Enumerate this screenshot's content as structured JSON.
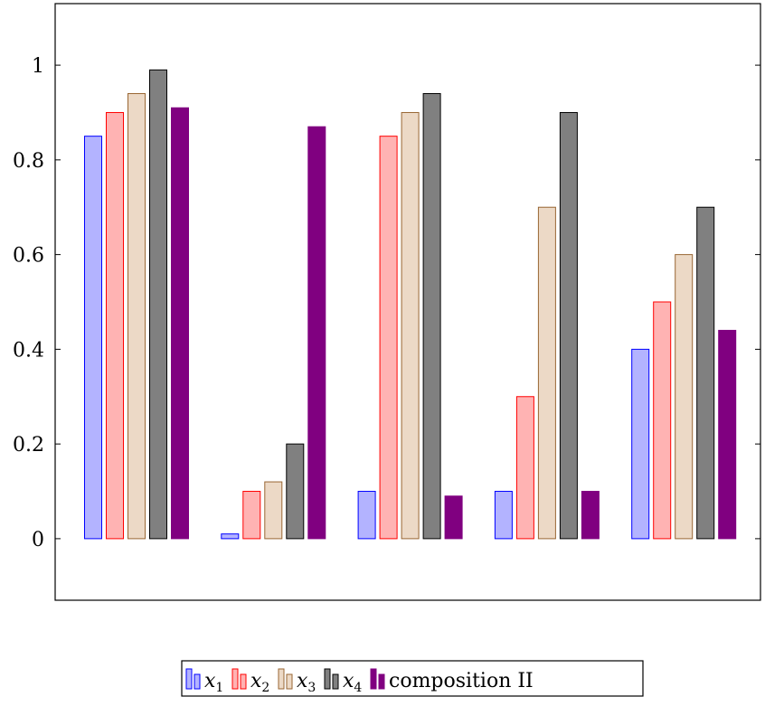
{
  "chart_data": {
    "type": "bar",
    "title": "",
    "xlabel": "",
    "ylabel": "",
    "categories": [
      "",
      "",
      "",
      "",
      ""
    ],
    "ylim": [
      -0.13,
      1.13
    ],
    "yticks": [
      0,
      0.2,
      0.4,
      0.6,
      0.8,
      1
    ],
    "ytick_labels": [
      "0",
      "0.2",
      "0.4",
      "0.6",
      "0.8",
      "1"
    ],
    "grid": false,
    "legend_position": "bottom-center",
    "series": [
      {
        "name": "x1",
        "label_base": "x",
        "label_sub": "1",
        "values": [
          0.85,
          0.01,
          0.1,
          0.1,
          0.4
        ],
        "fill": "#b3b3ff",
        "stroke": "#0000ff"
      },
      {
        "name": "x2",
        "label_base": "x",
        "label_sub": "2",
        "values": [
          0.9,
          0.1,
          0.85,
          0.3,
          0.5
        ],
        "fill": "#ffb3b3",
        "stroke": "#ff0000"
      },
      {
        "name": "x3",
        "label_base": "x",
        "label_sub": "3",
        "values": [
          0.94,
          0.12,
          0.9,
          0.7,
          0.6
        ],
        "fill": "#ecd9c6",
        "stroke": "#996633"
      },
      {
        "name": "x4",
        "label_base": "x",
        "label_sub": "4",
        "values": [
          0.99,
          0.2,
          0.94,
          0.9,
          0.7
        ],
        "fill": "#808080",
        "stroke": "#000000"
      },
      {
        "name": "composition II",
        "label_base": "composition II",
        "label_sub": "",
        "values": [
          0.91,
          0.87,
          0.09,
          0.1,
          0.44
        ],
        "fill": "#800080",
        "stroke": "#800080"
      }
    ]
  }
}
